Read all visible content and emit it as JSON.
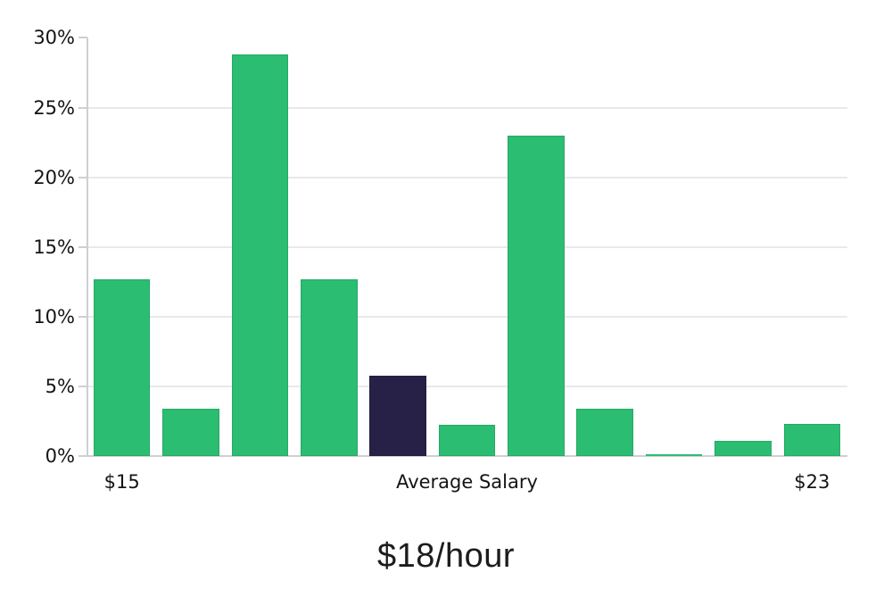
{
  "chart_data": {
    "type": "bar",
    "title": "$18/hour",
    "xlabel": "",
    "ylabel": "",
    "ylim": [
      0,
      30
    ],
    "y_unit": "percent",
    "y_ticks": [
      {
        "value": 0,
        "label": "0%"
      },
      {
        "value": 5,
        "label": "5%"
      },
      {
        "value": 10,
        "label": "10%"
      },
      {
        "value": 15,
        "label": "15%"
      },
      {
        "value": 20,
        "label": "20%"
      },
      {
        "value": 25,
        "label": "25%"
      },
      {
        "value": 30,
        "label": "30%"
      }
    ],
    "gridlines_at": [
      5,
      10,
      15,
      20,
      25
    ],
    "grid": true,
    "legend": null,
    "bars": [
      {
        "index": 0,
        "value": 12.65,
        "highlight": false
      },
      {
        "index": 1,
        "value": 3.4,
        "highlight": false
      },
      {
        "index": 2,
        "value": 28.8,
        "highlight": false
      },
      {
        "index": 3,
        "value": 12.65,
        "highlight": false
      },
      {
        "index": 4,
        "value": 5.75,
        "highlight": true
      },
      {
        "index": 5,
        "value": 2.25,
        "highlight": false
      },
      {
        "index": 6,
        "value": 23.0,
        "highlight": false
      },
      {
        "index": 7,
        "value": 3.4,
        "highlight": false
      },
      {
        "index": 8,
        "value": 0.1,
        "highlight": false
      },
      {
        "index": 9,
        "value": 1.1,
        "highlight": false
      },
      {
        "index": 10,
        "value": 2.3,
        "highlight": false
      }
    ],
    "x_ticks": [
      {
        "bar_index": 0,
        "label": "$15"
      },
      {
        "bar_index": 5,
        "label": "Average Salary"
      },
      {
        "bar_index": 10,
        "label": "$23"
      }
    ],
    "colors": {
      "bar": "#2bbd72",
      "bar_edge": "rgba(0,0,0,0.10)",
      "highlight_bar": "#282147",
      "gridline": "#e9e9e9",
      "axis": "#cfcfcf",
      "tick_label": "#141414",
      "title": "#1c1c1c",
      "background": "#ffffff"
    }
  }
}
